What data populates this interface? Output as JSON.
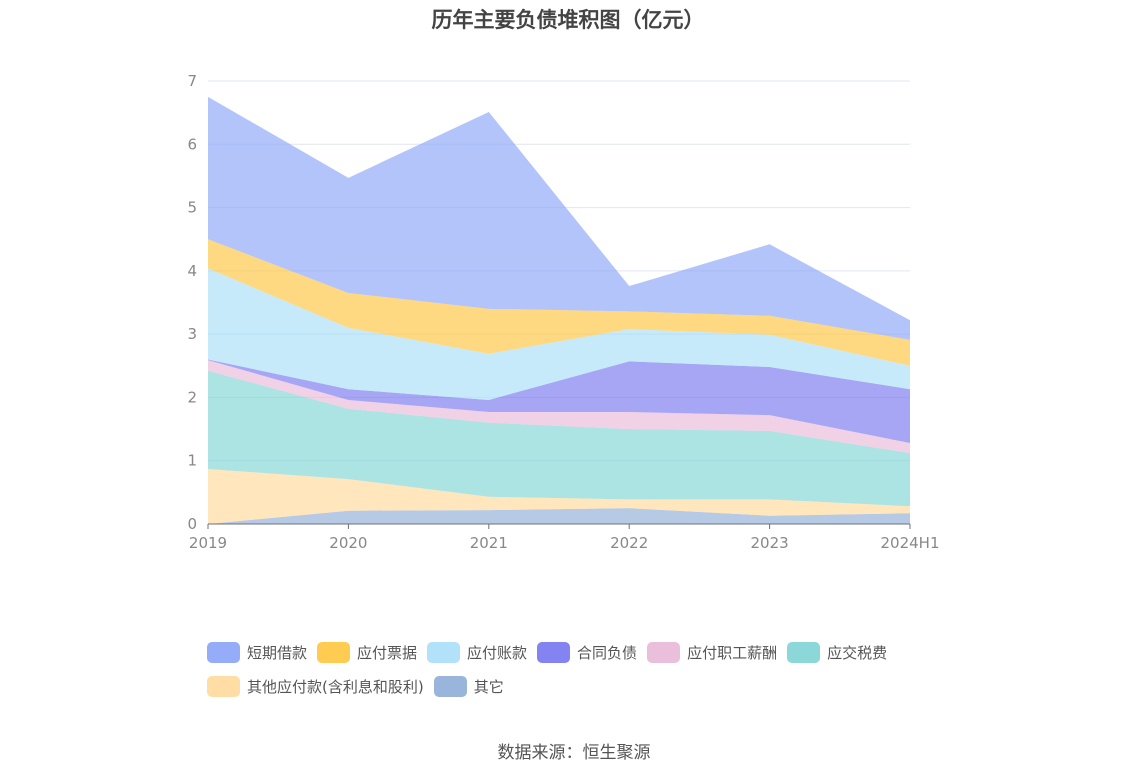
{
  "chart_data": {
    "type": "area",
    "stacked": true,
    "title": "历年主要负债堆积图（亿元）",
    "categories": [
      "2019",
      "2020",
      "2021",
      "2022",
      "2023",
      "2024H1"
    ],
    "ylim": [
      0,
      7
    ],
    "yticks": [
      "0",
      "1",
      "2",
      "3",
      "4",
      "5",
      "6",
      "7"
    ],
    "grid": true,
    "legend_position": "bottom",
    "series": [
      {
        "name": "其它",
        "color": "#8fadd8",
        "values": [
          0.0,
          0.21,
          0.22,
          0.25,
          0.13,
          0.17
        ]
      },
      {
        "name": "其他应付款(含利息和股利)",
        "color": "#ffd99a",
        "values": [
          0.87,
          0.5,
          0.21,
          0.14,
          0.26,
          0.11
        ]
      },
      {
        "name": "应交税费",
        "color": "#7fd4d4",
        "values": [
          1.55,
          1.11,
          1.17,
          1.11,
          1.08,
          0.84
        ]
      },
      {
        "name": "应付职工薪酬",
        "color": "#e8b8d8",
        "values": [
          0.17,
          0.14,
          0.17,
          0.27,
          0.25,
          0.16
        ]
      },
      {
        "name": "合同负债",
        "color": "#7676f0",
        "values": [
          0.01,
          0.17,
          0.19,
          0.8,
          0.76,
          0.85
        ]
      },
      {
        "name": "应付账款",
        "color": "#a8dff8",
        "values": [
          1.44,
          0.97,
          0.73,
          0.51,
          0.51,
          0.37
        ]
      },
      {
        "name": "应付票据",
        "color": "#ffc53d",
        "values": [
          0.46,
          0.55,
          0.71,
          0.28,
          0.3,
          0.41
        ]
      },
      {
        "name": "短期借款",
        "color": "#8aa4f8",
        "values": [
          2.25,
          1.82,
          3.11,
          0.4,
          1.13,
          0.31
        ]
      }
    ],
    "legend_order": [
      "短期借款",
      "应付票据",
      "应付账款",
      "合同负债",
      "应付职工薪酬",
      "应交税费",
      "其他应付款(含利息和股利)",
      "其它"
    ]
  },
  "source": "数据来源：恒生聚源"
}
